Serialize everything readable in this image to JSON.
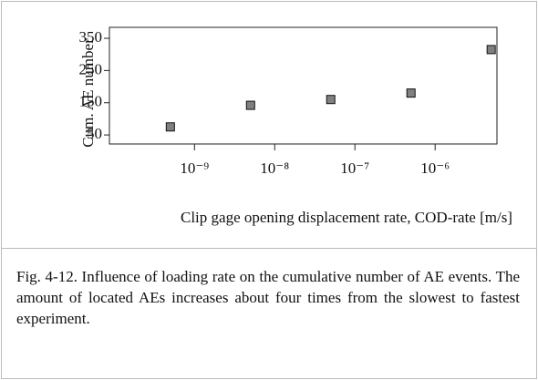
{
  "chart_data": {
    "type": "scatter",
    "xlabel": "Clip gage opening displacement rate, COD-rate [m/s]",
    "ylabel": "Cum. AE number",
    "x": [
      5e-10,
      5e-09,
      5e-08,
      5e-07,
      5e-06
    ],
    "values": [
      75,
      142,
      160,
      180,
      315
    ],
    "color": "#808080",
    "xscale": "log",
    "xlim": [
      8.7e-11,
      5.9e-06
    ],
    "xticks": [
      {
        "value": 1e-09,
        "label": "10⁻⁹"
      },
      {
        "value": 1e-08,
        "label": "10⁻⁸"
      },
      {
        "value": 1e-07,
        "label": "10⁻⁷"
      },
      {
        "value": 1e-06,
        "label": "10⁻⁶"
      }
    ],
    "ylim": [
      22,
      384
    ],
    "yticks": [
      50,
      150,
      250,
      350
    ]
  },
  "caption": "Fig. 4-12. Influence of loading rate on the cumulative number of AE events. The amount of located AEs increases about four times from the slowest to fastest experiment."
}
